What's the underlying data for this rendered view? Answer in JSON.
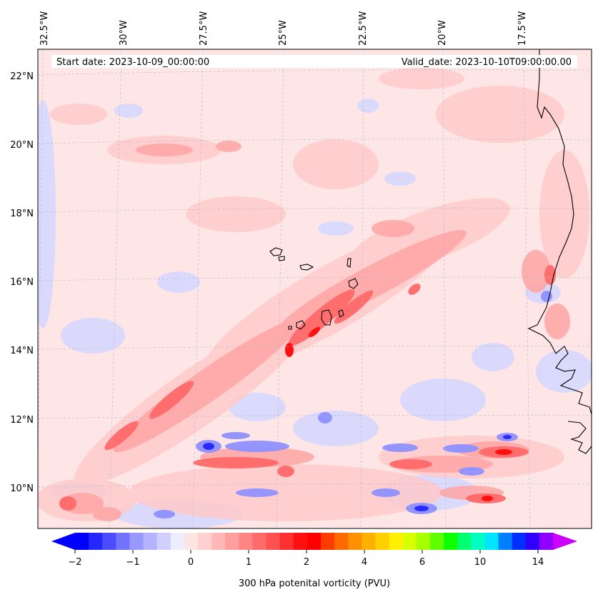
{
  "header": {
    "start_date": "Start date: 2023-10-09_00:00:00",
    "valid_date": "Valid_date: 2023-10-10T09:00:00.00"
  },
  "lon_labels": [
    "32.5°W",
    "30°W",
    "27.5°W",
    "25°W",
    "22.5°W",
    "20°W",
    "17.5°W"
  ],
  "lat_labels": [
    "22°N",
    "20°N",
    "18°N",
    "16°N",
    "14°N",
    "12°N",
    "10°N"
  ],
  "colorbar": {
    "label": "300 hPa potenital vorticity (PVU)",
    "tick_labels": [
      "−2",
      "−1",
      "0",
      "1",
      "2",
      "4",
      "6",
      "10",
      "14"
    ],
    "colors": [
      "#0000ff",
      "#2626ff",
      "#4c4cff",
      "#7272ff",
      "#9898ff",
      "#b3b3ff",
      "#d0d0ff",
      "#ecedff",
      "#ffe4e4",
      "#ffd0d0",
      "#ffb8b8",
      "#ff9e9e",
      "#ff8484",
      "#ff6a6a",
      "#ff5050",
      "#ff3030",
      "#ff1010",
      "#ff0000",
      "#ff3c00",
      "#ff6a00",
      "#ff9000",
      "#ffb000",
      "#ffd000",
      "#fff000",
      "#d8ff00",
      "#a8ff00",
      "#60ff00",
      "#10ff00",
      "#00ff70",
      "#00ffc0",
      "#00e4ff",
      "#0080ff",
      "#0030ff",
      "#3000ff",
      "#9000ff"
    ],
    "extend_min_color": "#0000ff",
    "extend_max_color": "#cc00ff"
  },
  "map_colors": {
    "background": "#ffe6e6",
    "light_red": "#ffcaca",
    "medium_red": "#ffa8a8",
    "strong_red": "#ff6a6a",
    "deep_red": "#ff1010",
    "light_blue": "#d6d8ff",
    "blue": "#8f91ff",
    "deep_blue": "#2a2aff",
    "coast": "#000000",
    "grid": "#b4b4c8"
  }
}
